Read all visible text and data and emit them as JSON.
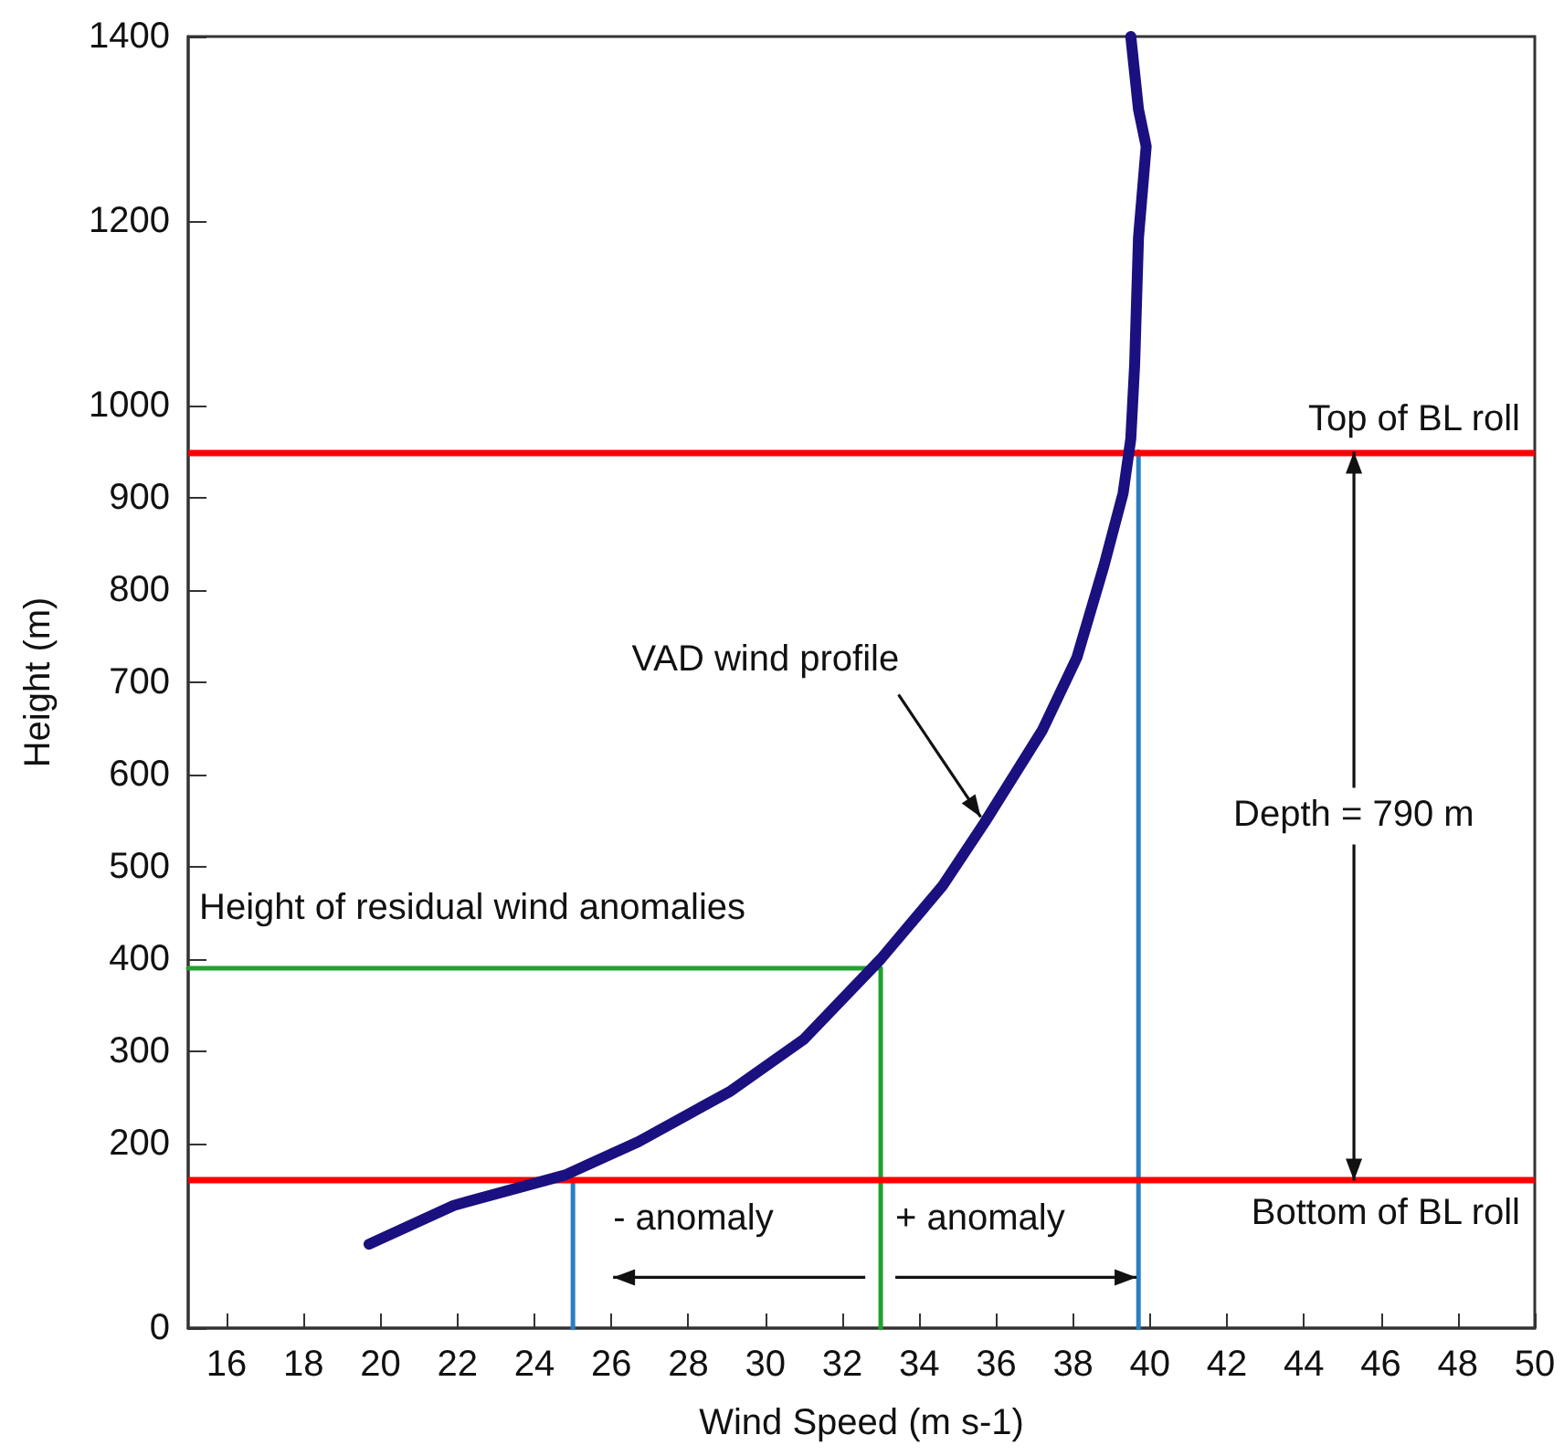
{
  "chart_data": {
    "type": "line",
    "xlabel": "Wind Speed (m s-1)",
    "ylabel": "Height (m)",
    "xlim": [
      15,
      50
    ],
    "xticks": [
      16,
      18,
      20,
      22,
      24,
      26,
      28,
      30,
      32,
      34,
      36,
      38,
      40,
      42,
      44,
      46,
      48,
      50
    ],
    "ylim": [
      0,
      1400
    ],
    "yticks": [
      0,
      200,
      300,
      400,
      500,
      600,
      700,
      800,
      900,
      1000,
      1200,
      1400
    ],
    "grid": false,
    "marker": "none",
    "line_style": "solid",
    "series": [
      {
        "color": "#1a1080",
        "x": [
          19.7,
          21.9,
          24.8,
          26.7,
          29.1,
          31.0,
          33.0,
          34.6,
          35.7,
          37.2,
          38.1,
          38.8,
          39.3,
          39.5,
          39.6,
          39.7,
          39.9,
          39.7,
          39.5
        ],
        "values": [
          91,
          133,
          166,
          202,
          257,
          313,
          400,
          479,
          548,
          648,
          727,
          826,
          905,
          964,
          1044,
          1182,
          1281,
          1321,
          1400
        ]
      },
      {
        "color": "#22a030",
        "x": [
          15,
          33,
          33
        ],
        "values": [
          390,
          390,
          0
        ]
      },
      {
        "color": "#2a7fc0",
        "x": [
          25,
          25
        ],
        "values": [
          0,
          160
        ]
      },
      {
        "color": "#2a7fc0",
        "x": [
          39.7,
          39.7
        ],
        "values": [
          0,
          950
        ]
      }
    ],
    "ref_lines": [
      {
        "axis": "y",
        "value": 950,
        "label": "Top of BL roll",
        "color": "#ff0000"
      },
      {
        "axis": "y",
        "value": 160,
        "label": "Bottom of BL roll",
        "color": "#ff0000"
      }
    ],
    "annotations": [
      {
        "text": "VAD wind profile",
        "x": 35.6,
        "y": 554
      },
      {
        "text": "Height of residual wind anomalies",
        "x": 15,
        "y": 390
      },
      {
        "text": "- anomaly",
        "x": 25,
        "y": 55
      },
      {
        "text": "+ anomaly",
        "x": 33,
        "y": 55
      },
      {
        "text": "Depth = 790 m",
        "x": 45.3,
        "y": 950
      }
    ]
  }
}
